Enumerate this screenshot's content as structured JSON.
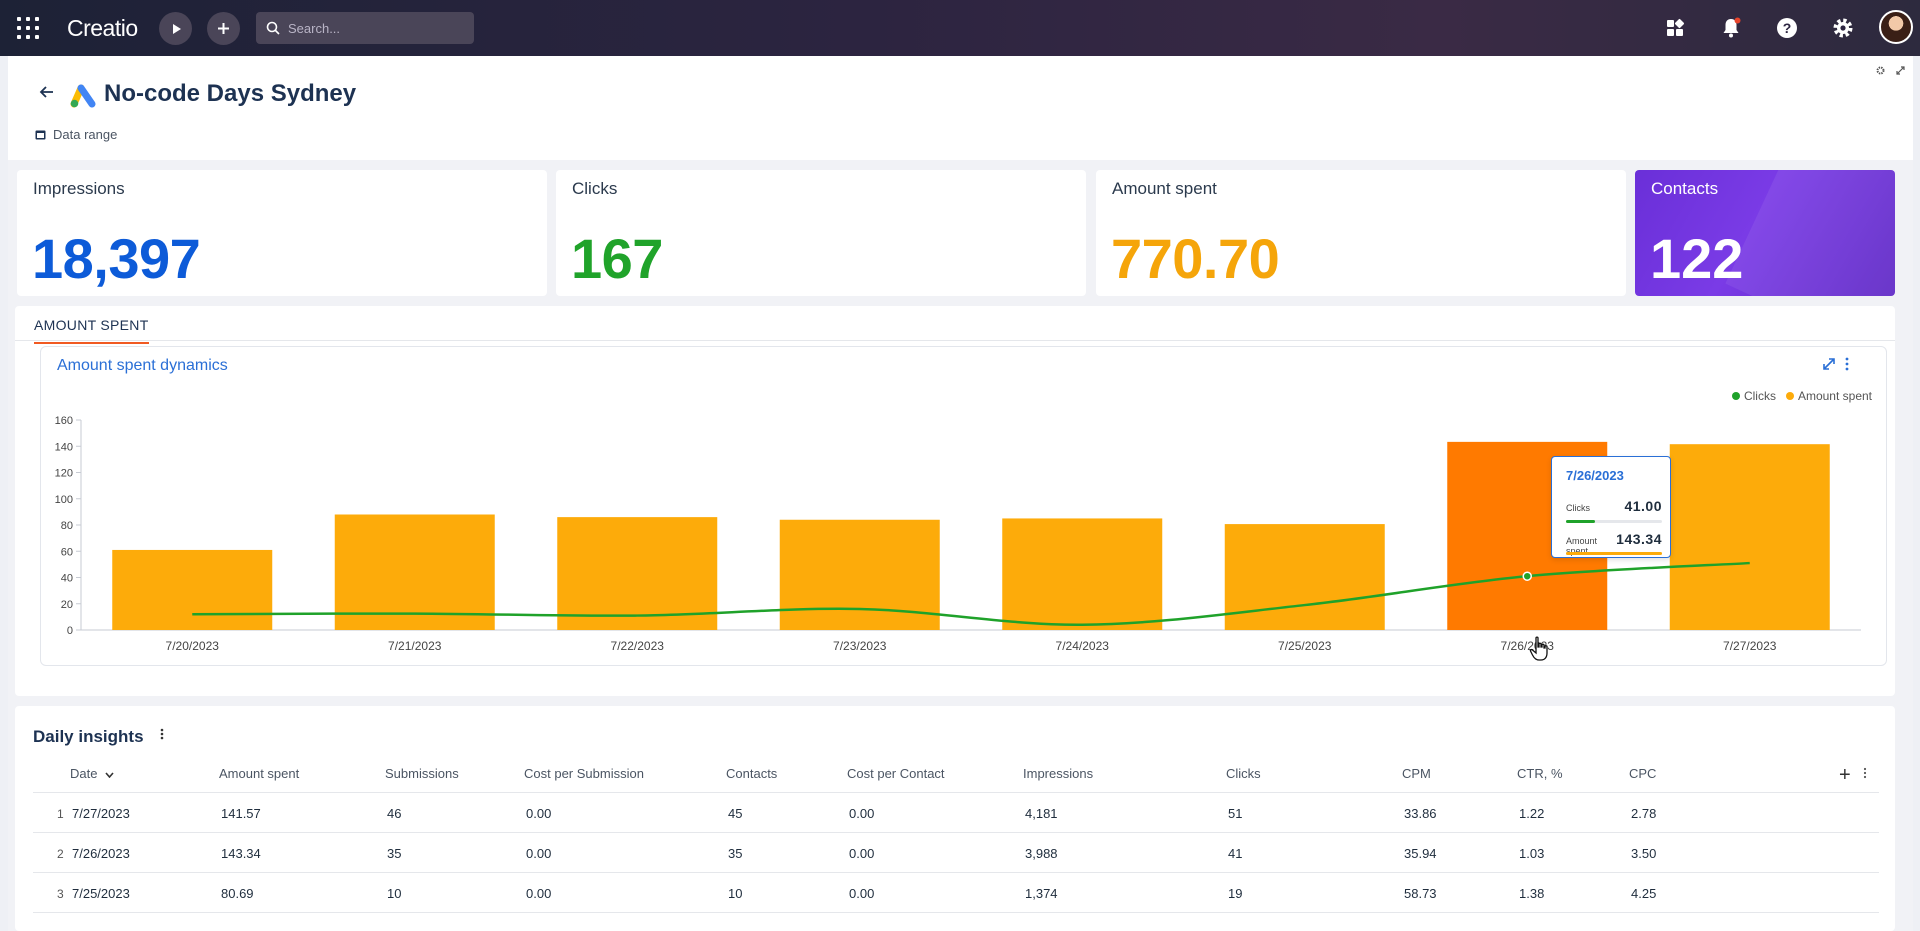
{
  "topbar": {
    "logo": "Creatio",
    "search_placeholder": "Search..."
  },
  "header": {
    "title": "No-code Days Sydney",
    "date_range_label": "Data range"
  },
  "kpis": [
    {
      "label": "Impressions",
      "value": "18,397",
      "color": "#0d5bd8"
    },
    {
      "label": "Clicks",
      "value": "167",
      "color": "#20a32a"
    },
    {
      "label": "Amount spent",
      "value": "770.70",
      "color": "#f5a50a"
    },
    {
      "label": "Contacts",
      "value": "122",
      "color": "#6a2fd8"
    }
  ],
  "tabs": [
    {
      "label": "AMOUNT SPENT"
    }
  ],
  "chart": {
    "title": "Amount spent dynamics",
    "legend": {
      "clicks": "Clicks",
      "amount": "Amount spent"
    },
    "tooltip": {
      "date": "7/26/2023",
      "clicks_label": "Clicks",
      "clicks_value": "41.00",
      "amount_label": "Amount spent",
      "amount_value": "143.34"
    }
  },
  "chart_data": {
    "type": "bar",
    "categories": [
      "7/20/2023",
      "7/21/2023",
      "7/22/2023",
      "7/23/2023",
      "7/24/2023",
      "7/25/2023",
      "7/26/2023",
      "7/27/2023"
    ],
    "series": [
      {
        "name": "Amount spent",
        "type": "bar",
        "color": "#fdab0a",
        "values": [
          61,
          88,
          86,
          84,
          85,
          80.69,
          143.34,
          141.57
        ]
      },
      {
        "name": "Clicks",
        "type": "line",
        "color": "#1fa22a",
        "values": [
          12,
          12.5,
          11,
          16,
          4,
          19,
          41,
          51
        ]
      }
    ],
    "highlight": {
      "category": "7/26/2023",
      "color": "#ff7a00"
    },
    "yticks": [
      0,
      20,
      40,
      60,
      80,
      100,
      120,
      140,
      160
    ],
    "ylim": [
      0,
      160
    ],
    "grid": false,
    "legend_position": "top-right"
  },
  "table": {
    "title": "Daily insights",
    "columns": [
      "Date",
      "Amount spent",
      "Submissions",
      "Cost per Submission",
      "Contacts",
      "Cost per Contact",
      "Impressions",
      "Clicks",
      "CPM",
      "CTR, %",
      "CPC"
    ],
    "rows": [
      {
        "num": "1",
        "cells": [
          "7/27/2023",
          "141.57",
          "46",
          "0.00",
          "45",
          "0.00",
          "4,181",
          "51",
          "33.86",
          "1.22",
          "2.78"
        ]
      },
      {
        "num": "2",
        "cells": [
          "7/26/2023",
          "143.34",
          "35",
          "0.00",
          "35",
          "0.00",
          "3,988",
          "41",
          "35.94",
          "1.03",
          "3.50"
        ]
      },
      {
        "num": "3",
        "cells": [
          "7/25/2023",
          "80.69",
          "10",
          "0.00",
          "10",
          "0.00",
          "1,374",
          "19",
          "58.73",
          "1.38",
          "4.25"
        ]
      }
    ]
  }
}
